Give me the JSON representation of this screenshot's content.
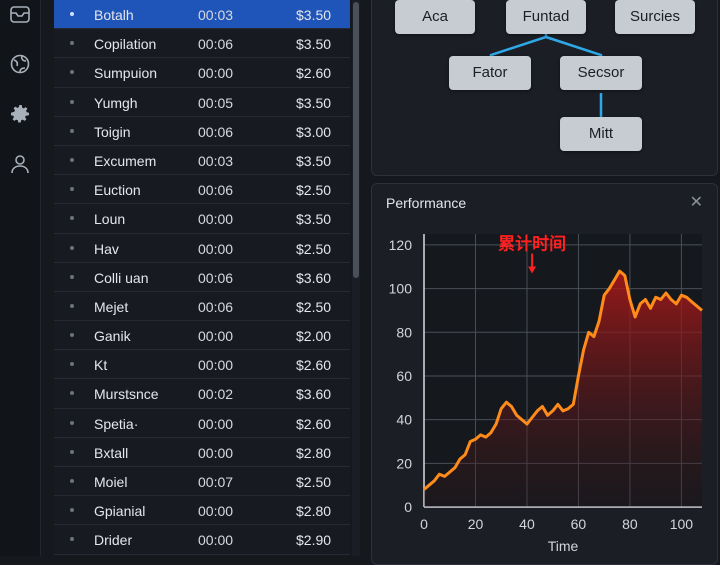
{
  "rail": {
    "icons": [
      "box-icon",
      "globe-icon",
      "gear-icon",
      "user-icon"
    ]
  },
  "list": {
    "rows": [
      {
        "name": "Botalh",
        "time": "00:03",
        "price": "$3.50",
        "selected": true
      },
      {
        "name": "Copilation",
        "time": "00:06",
        "price": "$3.50"
      },
      {
        "name": "Sumpuion",
        "time": "00:00",
        "price": "$2.60"
      },
      {
        "name": "Yumgh",
        "time": "00:05",
        "price": "$3.50"
      },
      {
        "name": "Toigin",
        "time": "00:06",
        "price": "$3.00"
      },
      {
        "name": "Excumem",
        "time": "00:03",
        "price": "$3.50"
      },
      {
        "name": "Euction",
        "time": "00:06",
        "price": "$2.50"
      },
      {
        "name": "Loun",
        "time": "00:00",
        "price": "$3.50"
      },
      {
        "name": "Hav",
        "time": "00:00",
        "price": "$2.50"
      },
      {
        "name": "Colli uan",
        "time": "00:06",
        "price": "$3.60"
      },
      {
        "name": "Mejet",
        "time": "00:06",
        "price": "$2.50"
      },
      {
        "name": "Ganik",
        "time": "00:00",
        "price": "$2.00"
      },
      {
        "name": "Kt",
        "time": "00:00",
        "price": "$2.60"
      },
      {
        "name": "Murstsnce",
        "time": "00:02",
        "price": "$3.60"
      },
      {
        "name": "Spetia·",
        "time": "00:00",
        "price": "$2.60"
      },
      {
        "name": "Bxtall",
        "time": "00:00",
        "price": "$2.80"
      },
      {
        "name": "Moiel",
        "time": "00:07",
        "price": "$2.50"
      },
      {
        "name": "Gpianial",
        "time": "00:00",
        "price": "$2.80"
      },
      {
        "name": "Drider",
        "time": "00:00",
        "price": "$2.90"
      }
    ]
  },
  "diagram": {
    "nodes": {
      "aca": "Aca",
      "funtad": "Funtad",
      "surcies": "Surcies",
      "fator": "Fator",
      "secsor": "Secsor",
      "mitt": "Mitt"
    },
    "link_color": "#2fa8e8"
  },
  "performance": {
    "title": "Performance",
    "close_glyph": "✕",
    "annotation": "累计时间",
    "chart_data": {
      "type": "area",
      "xlabel": "Time",
      "ylabel": "",
      "xlim": [
        0,
        108
      ],
      "ylim": [
        0,
        125
      ],
      "xticks": [
        0,
        20,
        40,
        60,
        80,
        100
      ],
      "yticks": [
        0,
        20,
        40,
        60,
        80,
        100,
        120
      ],
      "grid": true,
      "line_color": "#ff8c1a",
      "annotation_color": "#ff2020",
      "annotation_x": 42,
      "annotation_y": 106,
      "x": [
        0,
        2,
        4,
        6,
        8,
        10,
        12,
        14,
        16,
        18,
        20,
        22,
        24,
        26,
        28,
        30,
        32,
        34,
        36,
        38,
        40,
        42,
        44,
        46,
        48,
        50,
        52,
        54,
        56,
        58,
        60,
        62,
        64,
        66,
        68,
        70,
        72,
        74,
        76,
        78,
        80,
        82,
        84,
        86,
        88,
        90,
        92,
        94,
        96,
        98,
        100,
        102,
        104,
        106,
        108
      ],
      "values": [
        8,
        10,
        12,
        15,
        14,
        16,
        18,
        22,
        24,
        30,
        31,
        33,
        32,
        34,
        38,
        45,
        48,
        46,
        42,
        40,
        38,
        41,
        44,
        46,
        42,
        44,
        47,
        44,
        45,
        47,
        60,
        72,
        80,
        78,
        85,
        97,
        100,
        104,
        108,
        106,
        95,
        87,
        93,
        95,
        91,
        96,
        95,
        98,
        95,
        93,
        97,
        96,
        94,
        92,
        90
      ]
    }
  }
}
